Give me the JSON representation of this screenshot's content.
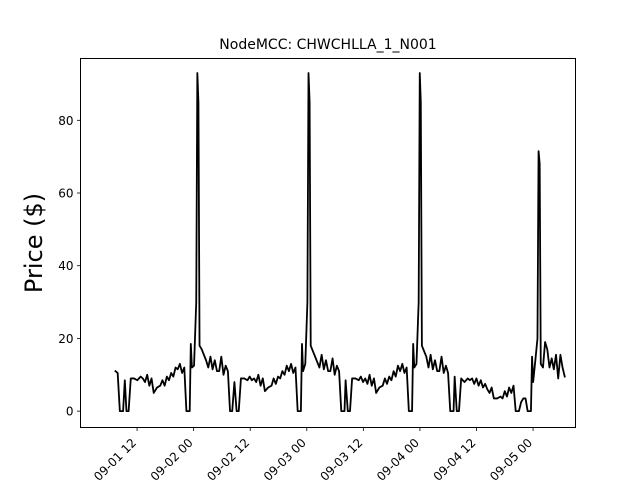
{
  "chart_data": {
    "type": "line",
    "title": "NodeMCC: CHWCHLLA_1_N001",
    "xlabel": "",
    "ylabel": "Price ($)",
    "x_type": "datetime",
    "x_axis_range": [
      "2015-09-01 00:00",
      "2015-09-05 09:00"
    ],
    "ylim": [
      -4.5,
      97
    ],
    "xtick_labels": [
      "09-01 12",
      "09-02 00",
      "09-02 12",
      "09-03 00",
      "09-03 12",
      "09-04 00",
      "09-04 12",
      "09-05 00"
    ],
    "xtick_dates": [
      "2015-09-01 12:00",
      "2015-09-02 00:00",
      "2015-09-02 12:00",
      "2015-09-03 00:00",
      "2015-09-03 12:00",
      "2015-09-04 00:00",
      "2015-09-04 12:00",
      "2015-09-05 00:00"
    ],
    "xtick_rotation": 45,
    "yticks": [
      0,
      20,
      40,
      60,
      80
    ],
    "grid": false,
    "line_color": "#000000",
    "series": [
      {
        "name": "",
        "points": [
          [
            "2015-09-01 07:25",
            11.0
          ],
          [
            "2015-09-01 07:53",
            10.5
          ],
          [
            "2015-09-01 08:21",
            0.0
          ],
          [
            "2015-09-01 09:02",
            0.0
          ],
          [
            "2015-09-01 09:24",
            8.5
          ],
          [
            "2015-09-01 09:45",
            0.0
          ],
          [
            "2015-09-01 10:12",
            0.0
          ],
          [
            "2015-09-01 10:40",
            9.0
          ],
          [
            "2015-09-01 11:22",
            9.0
          ],
          [
            "2015-09-01 12:03",
            8.5
          ],
          [
            "2015-09-01 12:45",
            9.5
          ],
          [
            "2015-09-01 13:13",
            9.0
          ],
          [
            "2015-09-01 13:41",
            8.0
          ],
          [
            "2015-09-01 14:09",
            10.0
          ],
          [
            "2015-09-01 14:36",
            7.0
          ],
          [
            "2015-09-01 15:04",
            9.0
          ],
          [
            "2015-09-01 15:32",
            5.0
          ],
          [
            "2015-09-01 16:14",
            6.5
          ],
          [
            "2015-09-01 16:55",
            7.0
          ],
          [
            "2015-09-01 17:23",
            8.5
          ],
          [
            "2015-09-01 17:51",
            7.0
          ],
          [
            "2015-09-01 18:19",
            9.5
          ],
          [
            "2015-09-01 18:46",
            8.5
          ],
          [
            "2015-09-01 19:14",
            10.5
          ],
          [
            "2015-09-01 19:42",
            9.5
          ],
          [
            "2015-09-01 20:10",
            12.0
          ],
          [
            "2015-09-01 20:37",
            11.5
          ],
          [
            "2015-09-01 21:05",
            13.0
          ],
          [
            "2015-09-01 21:33",
            10.5
          ],
          [
            "2015-09-01 22:01",
            12.0
          ],
          [
            "2015-09-01 22:28",
            0.0
          ],
          [
            "2015-09-01 23:10",
            0.0
          ],
          [
            "2015-09-01 23:24",
            18.5
          ],
          [
            "2015-09-01 23:38",
            12.0
          ],
          [
            "2015-09-02 00:05",
            12.5
          ],
          [
            "2015-09-02 00:33",
            30.0
          ],
          [
            "2015-09-02 00:47",
            93.0
          ],
          [
            "2015-09-02 01:01",
            85.0
          ],
          [
            "2015-09-02 01:15",
            18.0
          ],
          [
            "2015-09-02 01:43",
            17.0
          ],
          [
            "2015-09-02 02:10",
            15.5
          ],
          [
            "2015-09-02 02:38",
            14.0
          ],
          [
            "2015-09-02 03:06",
            12.0
          ],
          [
            "2015-09-02 03:34",
            15.0
          ],
          [
            "2015-09-02 04:01",
            11.5
          ],
          [
            "2015-09-02 04:29",
            14.0
          ],
          [
            "2015-09-02 04:57",
            11.0
          ],
          [
            "2015-09-02 05:25",
            11.0
          ],
          [
            "2015-09-02 05:52",
            15.0
          ],
          [
            "2015-09-02 06:20",
            10.0
          ],
          [
            "2015-09-02 06:48",
            12.5
          ],
          [
            "2015-09-02 07:16",
            11.0
          ],
          [
            "2015-09-02 07:43",
            0.0
          ],
          [
            "2015-09-02 08:11",
            0.0
          ],
          [
            "2015-09-02 08:39",
            8.0
          ],
          [
            "2015-09-02 09:07",
            0.0
          ],
          [
            "2015-09-02 09:34",
            0.0
          ],
          [
            "2015-09-02 10:02",
            9.0
          ],
          [
            "2015-09-02 10:44",
            9.0
          ],
          [
            "2015-09-02 11:25",
            8.5
          ],
          [
            "2015-09-02 11:53",
            9.5
          ],
          [
            "2015-09-02 12:21",
            8.5
          ],
          [
            "2015-09-02 12:49",
            9.0
          ],
          [
            "2015-09-02 13:16",
            8.0
          ],
          [
            "2015-09-02 13:44",
            10.0
          ],
          [
            "2015-09-02 14:12",
            7.0
          ],
          [
            "2015-09-02 14:40",
            9.0
          ],
          [
            "2015-09-02 15:07",
            5.5
          ],
          [
            "2015-09-02 15:49",
            6.5
          ],
          [
            "2015-09-02 16:31",
            7.0
          ],
          [
            "2015-09-02 16:58",
            9.0
          ],
          [
            "2015-09-02 17:26",
            7.5
          ],
          [
            "2015-09-02 17:54",
            9.5
          ],
          [
            "2015-09-02 18:22",
            9.0
          ],
          [
            "2015-09-02 18:49",
            11.0
          ],
          [
            "2015-09-02 19:17",
            10.0
          ],
          [
            "2015-09-02 19:45",
            12.5
          ],
          [
            "2015-09-02 20:13",
            11.0
          ],
          [
            "2015-09-02 20:40",
            13.0
          ],
          [
            "2015-09-02 21:08",
            10.5
          ],
          [
            "2015-09-02 21:36",
            12.0
          ],
          [
            "2015-09-02 22:04",
            0.0
          ],
          [
            "2015-09-02 22:45",
            0.0
          ],
          [
            "2015-09-02 22:59",
            18.5
          ],
          [
            "2015-09-02 23:13",
            11.0
          ],
          [
            "2015-09-02 23:41",
            13.0
          ],
          [
            "2015-09-03 00:08",
            30.0
          ],
          [
            "2015-09-03 00:22",
            93.0
          ],
          [
            "2015-09-03 00:36",
            85.0
          ],
          [
            "2015-09-03 00:50",
            18.0
          ],
          [
            "2015-09-03 01:18",
            16.5
          ],
          [
            "2015-09-03 01:46",
            15.0
          ],
          [
            "2015-09-03 02:13",
            13.5
          ],
          [
            "2015-09-03 02:41",
            12.0
          ],
          [
            "2015-09-03 03:09",
            15.5
          ],
          [
            "2015-09-03 03:37",
            11.5
          ],
          [
            "2015-09-03 04:04",
            14.0
          ],
          [
            "2015-09-03 04:32",
            11.0
          ],
          [
            "2015-09-03 05:00",
            11.0
          ],
          [
            "2015-09-03 05:28",
            14.5
          ],
          [
            "2015-09-03 05:55",
            10.0
          ],
          [
            "2015-09-03 06:23",
            12.5
          ],
          [
            "2015-09-03 06:51",
            11.0
          ],
          [
            "2015-09-03 07:19",
            0.0
          ],
          [
            "2015-09-03 08:00",
            0.0
          ],
          [
            "2015-09-03 08:14",
            8.5
          ],
          [
            "2015-09-03 08:42",
            0.0
          ],
          [
            "2015-09-03 09:10",
            0.0
          ],
          [
            "2015-09-03 09:37",
            9.0
          ],
          [
            "2015-09-03 10:19",
            9.0
          ],
          [
            "2015-09-03 11:01",
            8.5
          ],
          [
            "2015-09-03 11:28",
            9.5
          ],
          [
            "2015-09-03 11:56",
            8.0
          ],
          [
            "2015-09-03 12:24",
            9.0
          ],
          [
            "2015-09-03 12:52",
            7.5
          ],
          [
            "2015-09-03 13:19",
            10.0
          ],
          [
            "2015-09-03 13:47",
            7.0
          ],
          [
            "2015-09-03 14:15",
            9.0
          ],
          [
            "2015-09-03 14:43",
            5.0
          ],
          [
            "2015-09-03 15:24",
            6.5
          ],
          [
            "2015-09-03 16:06",
            7.0
          ],
          [
            "2015-09-03 16:34",
            9.0
          ],
          [
            "2015-09-03 17:01",
            7.5
          ],
          [
            "2015-09-03 17:29",
            9.5
          ],
          [
            "2015-09-03 17:57",
            8.5
          ],
          [
            "2015-09-03 18:25",
            11.0
          ],
          [
            "2015-09-03 18:52",
            9.5
          ],
          [
            "2015-09-03 19:20",
            12.5
          ],
          [
            "2015-09-03 19:48",
            11.0
          ],
          [
            "2015-09-03 20:16",
            13.0
          ],
          [
            "2015-09-03 20:43",
            10.5
          ],
          [
            "2015-09-03 21:11",
            12.0
          ],
          [
            "2015-09-03 21:39",
            0.0
          ],
          [
            "2015-09-03 22:20",
            0.0
          ],
          [
            "2015-09-03 22:34",
            18.5
          ],
          [
            "2015-09-03 22:48",
            12.0
          ],
          [
            "2015-09-03 23:16",
            13.0
          ],
          [
            "2015-09-03 23:44",
            30.0
          ],
          [
            "2015-09-03 23:58",
            93.0
          ],
          [
            "2015-09-04 00:11",
            85.0
          ],
          [
            "2015-09-04 00:25",
            18.0
          ],
          [
            "2015-09-04 00:53",
            16.5
          ],
          [
            "2015-09-04 01:21",
            15.0
          ],
          [
            "2015-09-04 01:49",
            12.0
          ],
          [
            "2015-09-04 02:16",
            15.5
          ],
          [
            "2015-09-04 02:44",
            11.5
          ],
          [
            "2015-09-04 03:12",
            14.0
          ],
          [
            "2015-09-04 03:40",
            11.0
          ],
          [
            "2015-09-04 04:07",
            11.0
          ],
          [
            "2015-09-04 04:35",
            15.0
          ],
          [
            "2015-09-04 05:03",
            10.5
          ],
          [
            "2015-09-04 05:31",
            12.5
          ],
          [
            "2015-09-04 05:58",
            10.5
          ],
          [
            "2015-09-04 06:26",
            0.0
          ],
          [
            "2015-09-04 07:08",
            0.0
          ],
          [
            "2015-09-04 07:22",
            9.5
          ],
          [
            "2015-09-04 07:49",
            0.0
          ],
          [
            "2015-09-04 08:17",
            0.0
          ],
          [
            "2015-09-04 08:45",
            9.0
          ],
          [
            "2015-09-04 09:27",
            8.0
          ],
          [
            "2015-09-04 10:08",
            9.0
          ],
          [
            "2015-09-04 10:36",
            8.5
          ],
          [
            "2015-09-04 11:04",
            9.0
          ],
          [
            "2015-09-04 11:31",
            7.5
          ],
          [
            "2015-09-04 11:59",
            9.0
          ],
          [
            "2015-09-04 12:27",
            7.0
          ],
          [
            "2015-09-04 12:55",
            8.5
          ],
          [
            "2015-09-04 13:22",
            6.5
          ],
          [
            "2015-09-04 13:50",
            7.5
          ],
          [
            "2015-09-04 14:18",
            6.0
          ],
          [
            "2015-09-04 14:46",
            5.0
          ],
          [
            "2015-09-04 15:13",
            6.5
          ],
          [
            "2015-09-04 15:41",
            3.5
          ],
          [
            "2015-09-04 16:23",
            3.5
          ],
          [
            "2015-09-04 17:04",
            4.0
          ],
          [
            "2015-09-04 17:32",
            3.5
          ],
          [
            "2015-09-04 18:00",
            5.5
          ],
          [
            "2015-09-04 18:28",
            4.0
          ],
          [
            "2015-09-04 18:55",
            6.5
          ],
          [
            "2015-09-04 19:23",
            5.0
          ],
          [
            "2015-09-04 19:51",
            7.0
          ],
          [
            "2015-09-04 20:19",
            0.0
          ],
          [
            "2015-09-04 21:00",
            0.0
          ],
          [
            "2015-09-04 21:28",
            2.5
          ],
          [
            "2015-09-04 21:56",
            3.5
          ],
          [
            "2015-09-04 22:24",
            3.5
          ],
          [
            "2015-09-04 22:51",
            0.0
          ],
          [
            "2015-09-04 23:33",
            0.0
          ],
          [
            "2015-09-04 23:47",
            15.0
          ],
          [
            "2015-09-05 00:01",
            8.0
          ],
          [
            "2015-09-05 00:29",
            14.0
          ],
          [
            "2015-09-05 00:56",
            20.0
          ],
          [
            "2015-09-05 01:10",
            71.5
          ],
          [
            "2015-09-05 01:24",
            68.0
          ],
          [
            "2015-09-05 01:38",
            13.0
          ],
          [
            "2015-09-05 02:06",
            12.0
          ],
          [
            "2015-09-05 02:33",
            19.0
          ],
          [
            "2015-09-05 03:01",
            17.0
          ],
          [
            "2015-09-05 03:29",
            12.0
          ],
          [
            "2015-09-05 03:57",
            14.5
          ],
          [
            "2015-09-05 04:24",
            11.5
          ],
          [
            "2015-09-05 04:52",
            15.5
          ],
          [
            "2015-09-05 05:20",
            9.0
          ],
          [
            "2015-09-05 05:48",
            15.5
          ],
          [
            "2015-09-05 06:15",
            12.0
          ],
          [
            "2015-09-05 06:43",
            9.5
          ]
        ]
      }
    ]
  }
}
